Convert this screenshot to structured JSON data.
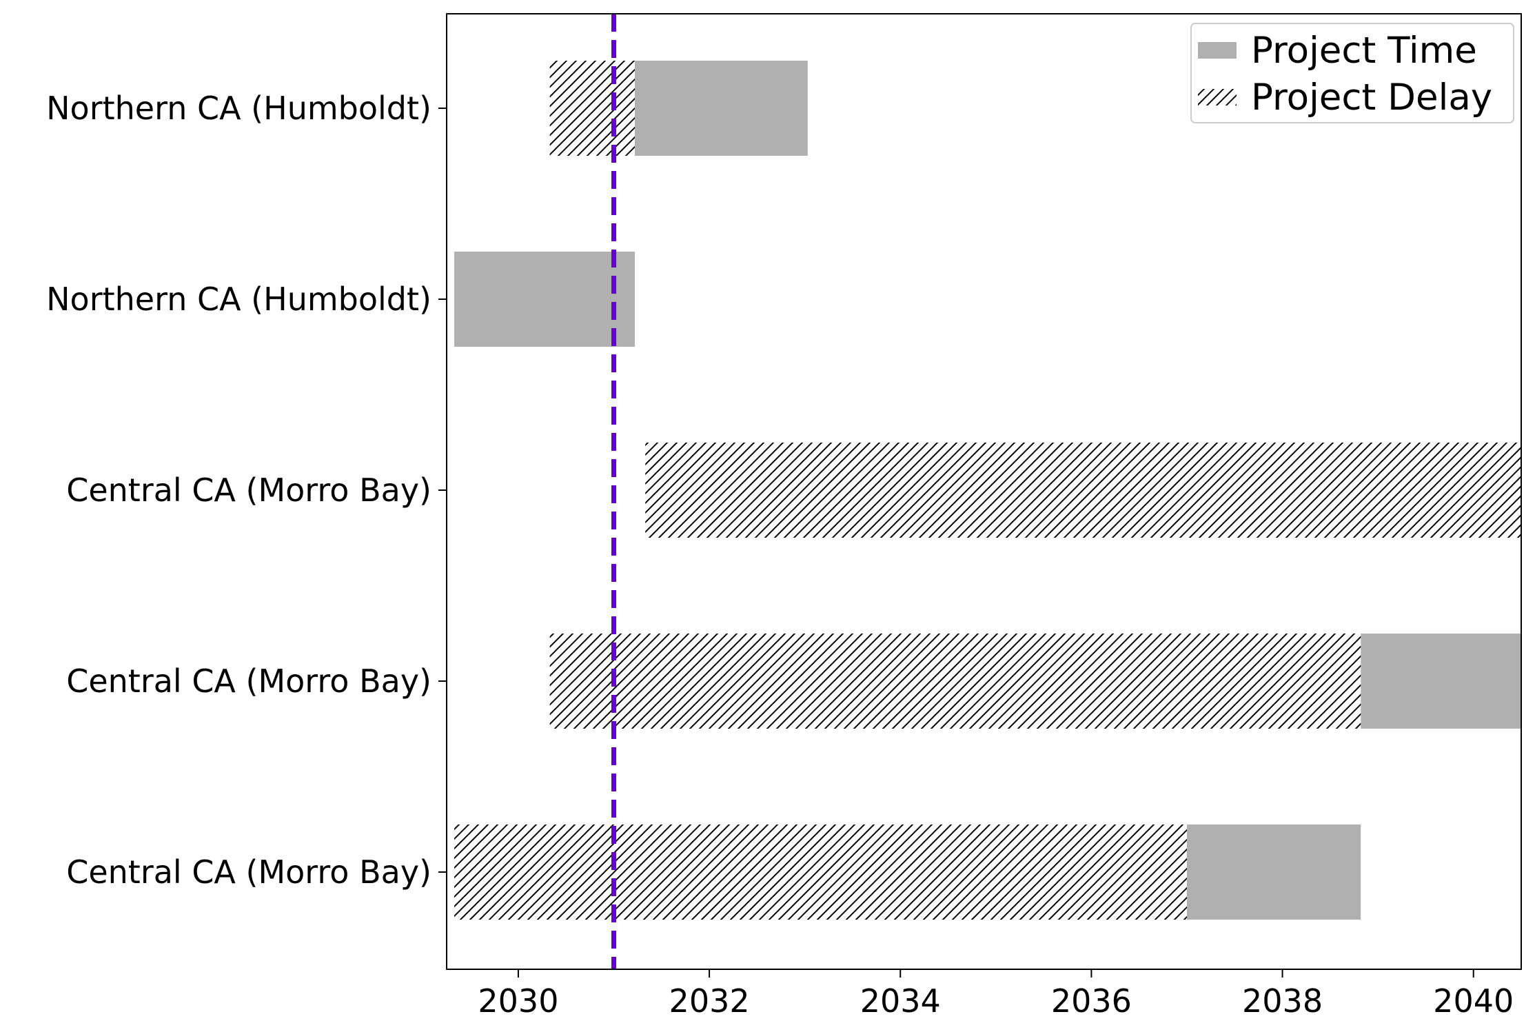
{
  "chart_data": {
    "type": "bar",
    "orientation": "horizontal",
    "title": "",
    "xlabel": "",
    "ylabel": "",
    "xlim": [
      2029.25,
      2040.5
    ],
    "x_ticks": [
      2030,
      2032,
      2034,
      2036,
      2038,
      2040
    ],
    "x_tick_labels": [
      "2030",
      "2032",
      "2034",
      "2036",
      "2038",
      "2040"
    ],
    "grid": false,
    "legend_position": "top-right",
    "legend": [
      {
        "label": "Project Time",
        "style": "solid",
        "color": "#b0b0b0"
      },
      {
        "label": "Project Delay",
        "style": "hatched",
        "color": "#000000"
      }
    ],
    "reference_line": {
      "x": 2031.0,
      "style": "dashed",
      "color": "#6600cc"
    },
    "rows": [
      {
        "label": "Northern CA (Humboldt)",
        "delay": [
          2030.33,
          2031.22
        ],
        "project": [
          2031.22,
          2033.03
        ]
      },
      {
        "label": "Northern CA (Humboldt)",
        "delay": null,
        "project": [
          2029.33,
          2031.22
        ]
      },
      {
        "label": "Central CA (Morro Bay)",
        "delay": [
          2031.33,
          2040.5
        ],
        "project": null
      },
      {
        "label": "Central CA (Morro Bay)",
        "delay": [
          2030.33,
          2038.82
        ],
        "project": [
          2038.82,
          2040.5
        ]
      },
      {
        "label": "Central CA (Morro Bay)",
        "delay": [
          2029.33,
          2037.0
        ],
        "project": [
          2037.0,
          2038.82
        ]
      }
    ]
  }
}
